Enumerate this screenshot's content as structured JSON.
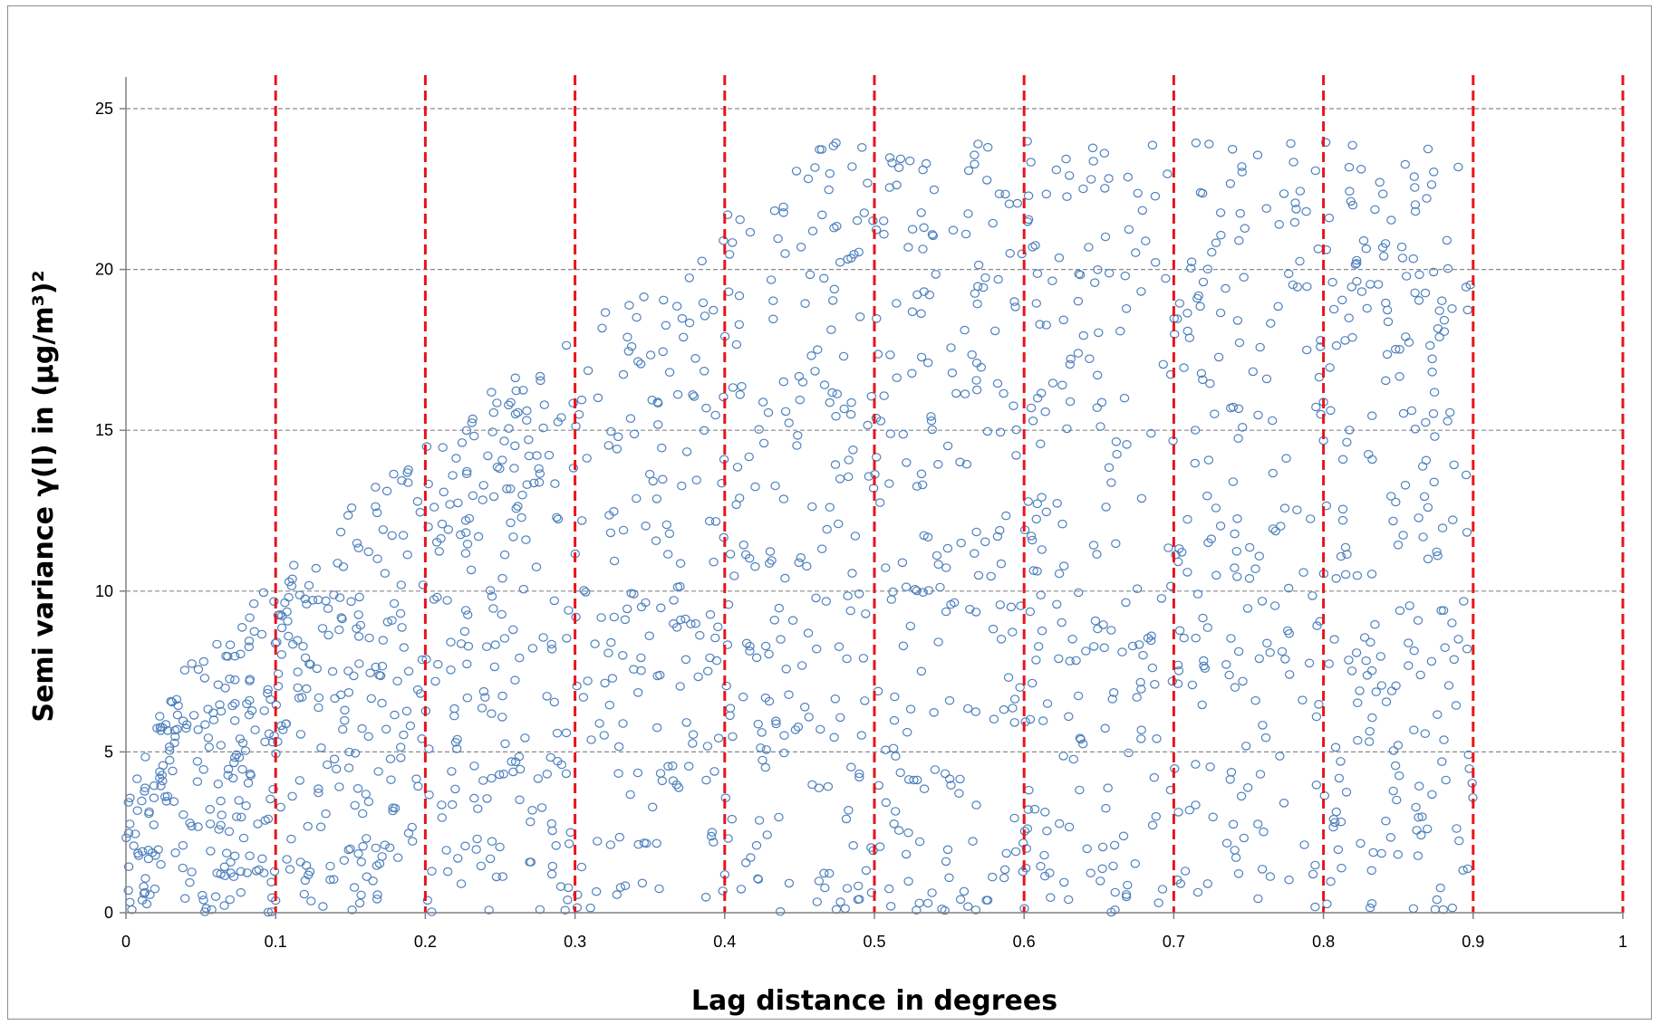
{
  "chart_data": {
    "type": "scatter",
    "xlabel": "Lag distance in degrees",
    "ylabel": "Semi variance γ(l) in (µg/m³)²",
    "xlim": [
      0,
      1
    ],
    "ylim": [
      0,
      25
    ],
    "x_ticks": [
      "0",
      "0.1",
      "0.2",
      "0.3",
      "0.4",
      "0.5",
      "0.6",
      "0.7",
      "0.8",
      "0.9",
      "1"
    ],
    "y_ticks": [
      "0",
      "5",
      "10",
      "15",
      "20",
      "25"
    ],
    "y_grid": true,
    "grid_style": "dashed",
    "lag_boundaries": [
      0.1,
      0.2,
      0.3,
      0.4,
      0.5,
      0.6,
      0.7,
      0.8,
      0.9,
      1.0
    ],
    "lag_boundary_color": "#e8141c",
    "marker": "open-circle",
    "marker_color": "#4f81bd",
    "point_count": 1800,
    "point_distribution": {
      "x_range": [
        0,
        0.9
      ],
      "envelope": "upper bound rises from about 5 at 0 to about 24 near 0.47, then stays near 24 up to 0.9"
    }
  }
}
